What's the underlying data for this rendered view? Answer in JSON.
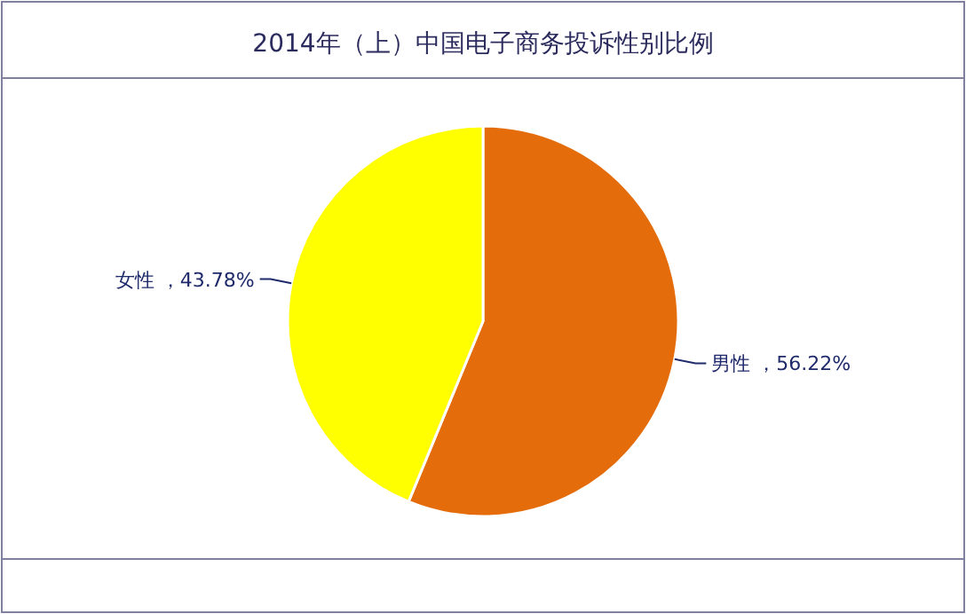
{
  "chart_data": {
    "type": "pie",
    "title": "2014年（上）中国电子商务投诉性别比例",
    "categories": [
      "男性",
      "女性"
    ],
    "values": [
      56.22,
      43.78
    ],
    "colors": [
      "#e46c0a",
      "#ffff00"
    ],
    "value_labels": [
      "56.22%",
      "43.78%"
    ]
  }
}
